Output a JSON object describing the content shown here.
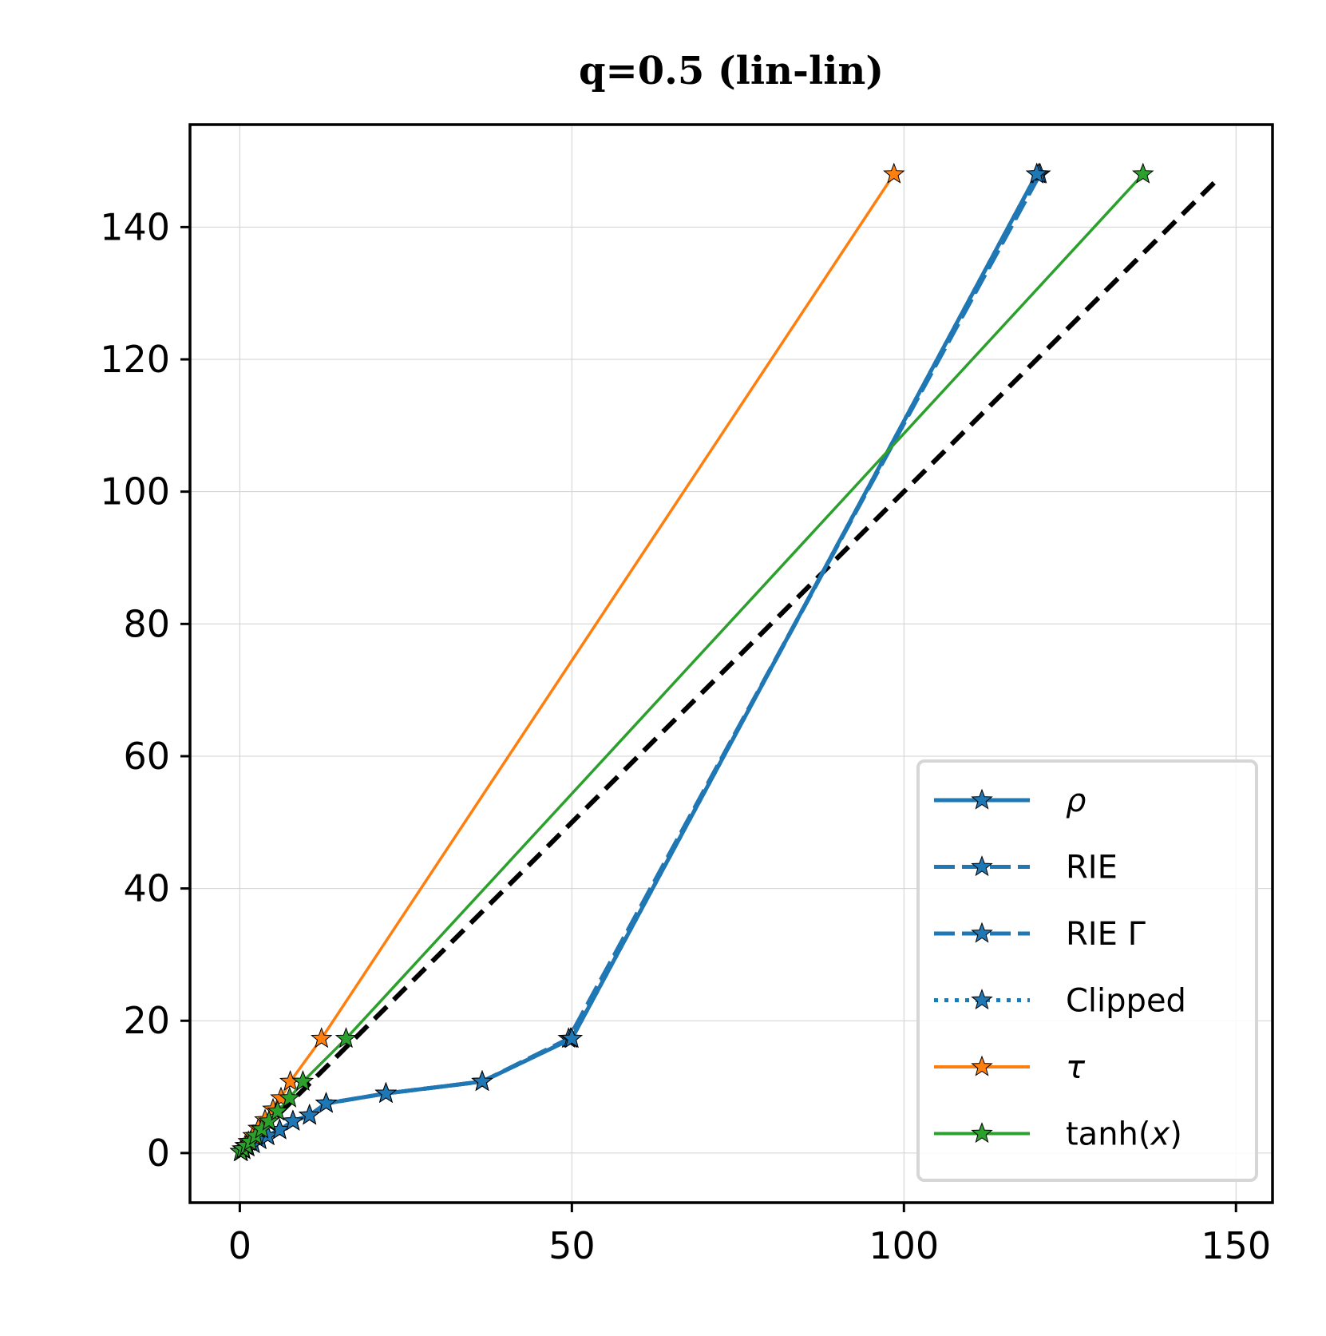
{
  "chart_data": {
    "type": "line",
    "title": "q=0.5 (lin-lin)",
    "xlabel": "",
    "ylabel": "",
    "xlim": [
      -7.5,
      155.5
    ],
    "ylim": [
      -7.5,
      155.5
    ],
    "xticks": [
      0,
      50,
      100,
      150
    ],
    "yticks": [
      0,
      20,
      40,
      60,
      80,
      100,
      120,
      140
    ],
    "grid": true,
    "legend_position": "lower-right",
    "reference_line": {
      "name": "y = x",
      "x": [
        0,
        147.5
      ],
      "y": [
        0,
        147.5
      ],
      "color": "#000000",
      "style": "dashed"
    },
    "series": [
      {
        "name": "ρ",
        "label_prefix": "",
        "label_italic": "ρ",
        "label_suffix": "",
        "color": "#1f77b4",
        "style": "solid",
        "x": [
          0.2,
          0.6,
          1.2,
          2.0,
          3.0,
          4.2,
          6.0,
          8.0,
          10.5,
          13.0,
          22.0,
          36.5,
          50.0,
          120.0
        ],
        "y": [
          0.2,
          0.5,
          0.9,
          1.4,
          2.0,
          2.6,
          3.5,
          4.8,
          5.7,
          7.5,
          9.0,
          10.8,
          17.3,
          148.0
        ]
      },
      {
        "name": "RIE",
        "label_prefix": "RIE",
        "label_italic": "",
        "label_suffix": "",
        "color": "#1f77b4",
        "style": "dashed",
        "x": [
          0.2,
          0.6,
          1.2,
          2.0,
          3.0,
          4.2,
          6.0,
          8.0,
          10.5,
          13.0,
          22.0,
          36.5,
          49.5,
          120.5
        ],
        "y": [
          0.2,
          0.5,
          0.9,
          1.4,
          2.0,
          2.6,
          3.5,
          4.8,
          5.7,
          7.5,
          9.0,
          10.8,
          17.3,
          148.0
        ]
      },
      {
        "name": "RIE Γ",
        "label_prefix": "RIE Γ",
        "label_italic": "",
        "label_suffix": "",
        "color": "#1f77b4",
        "style": "dashed",
        "x": [
          0.2,
          0.6,
          1.2,
          2.0,
          3.0,
          4.2,
          6.0,
          8.0,
          10.5,
          13.0,
          22.0,
          36.5,
          49.8,
          120.3
        ],
        "y": [
          0.2,
          0.5,
          0.9,
          1.4,
          2.0,
          2.6,
          3.5,
          4.8,
          5.7,
          7.5,
          9.0,
          10.8,
          17.3,
          148.0
        ]
      },
      {
        "name": "Clipped",
        "label_prefix": "Clipped",
        "label_italic": "",
        "label_suffix": "",
        "color": "#1f77b4",
        "style": "dotted",
        "x": [
          0.2,
          0.6,
          1.2,
          2.0,
          3.0,
          4.2,
          6.0,
          8.0,
          10.5,
          13.0,
          22.0,
          36.5,
          50.0,
          120.0
        ],
        "y": [
          0.2,
          0.5,
          0.9,
          1.4,
          2.0,
          2.6,
          3.5,
          4.8,
          5.7,
          7.5,
          9.0,
          10.8,
          17.3,
          148.0
        ]
      },
      {
        "name": "τ",
        "label_prefix": "",
        "label_italic": "τ",
        "label_suffix": "",
        "color": "#ff7f0e",
        "style": "solid",
        "x": [
          0.1,
          0.4,
          0.8,
          1.3,
          2.0,
          2.8,
          3.8,
          5.0,
          6.2,
          7.6,
          12.3,
          98.5
        ],
        "y": [
          0.2,
          0.6,
          1.1,
          1.7,
          2.6,
          3.7,
          5.0,
          6.6,
          8.3,
          10.8,
          17.3,
          148.0
        ]
      },
      {
        "name": "tanh(x)",
        "label_prefix": "tanh(",
        "label_italic": "x",
        "label_suffix": ")",
        "color": "#2ca02c",
        "style": "solid",
        "x": [
          0.1,
          0.5,
          1.0,
          1.6,
          2.4,
          3.3,
          4.4,
          5.7,
          7.5,
          9.5,
          16.0,
          136.0
        ],
        "y": [
          0.2,
          0.6,
          1.1,
          1.7,
          2.6,
          3.6,
          4.8,
          6.3,
          8.3,
          10.8,
          17.3,
          148.0
        ]
      }
    ]
  }
}
